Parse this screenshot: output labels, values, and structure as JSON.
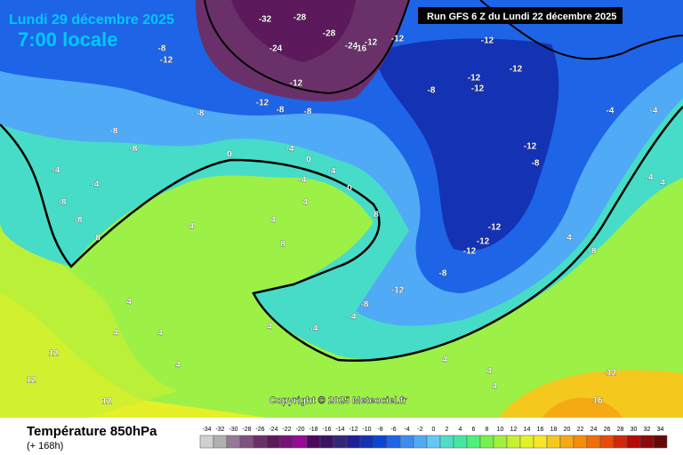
{
  "header": {
    "date": "Lundi 29 décembre 2025",
    "time": "7:00 locale",
    "run": "Run GFS 6 Z du Lundi 22 décembre 2025"
  },
  "copyright": "Copyright © 2025 Meteociel.fr",
  "legend": {
    "title": "Température 850hPa",
    "lead": "(+ 168h)",
    "ticks": [
      -34,
      -32,
      -30,
      -28,
      -26,
      -24,
      -22,
      -20,
      -18,
      -16,
      -14,
      -12,
      -10,
      -8,
      -6,
      -4,
      -2,
      0,
      2,
      4,
      6,
      8,
      10,
      12,
      14,
      16,
      18,
      20,
      22,
      24,
      26,
      28,
      30,
      32,
      34
    ],
    "colors": [
      "#d0d0d0",
      "#b0b0b0",
      "#967896",
      "#805080",
      "#6a306a",
      "#5c1a5c",
      "#781478",
      "#960a96",
      "#4a0a5a",
      "#3c1464",
      "#32287a",
      "#1e1e96",
      "#1432b4",
      "#0a46d2",
      "#1e64e6",
      "#3c8cf0",
      "#50aaf5",
      "#64c8f5",
      "#50dcc8",
      "#46e6a0",
      "#50f078",
      "#78f050",
      "#a0f03c",
      "#c8f032",
      "#e6f028",
      "#f5e628",
      "#f5c81e",
      "#f5aa14",
      "#f58c0a",
      "#f06e0a",
      "#e64b0a",
      "#d2280a",
      "#b40a0a",
      "#8c0a0a",
      "#640a0a"
    ]
  },
  "map": {
    "labels": [
      -32,
      -28,
      -28,
      -24,
      -24,
      -16,
      -12,
      -12,
      -12,
      -12,
      -12,
      -12,
      -8,
      -8,
      -12,
      -12,
      -12,
      -8,
      -8,
      -8,
      -8,
      -8,
      -4,
      0,
      0,
      -4,
      -4,
      -8,
      -8,
      -4,
      0,
      -4,
      4,
      4,
      8,
      4,
      8,
      8,
      4,
      4,
      12,
      12,
      12,
      -12,
      -8,
      -12,
      -12,
      -12,
      -8,
      -12,
      -8,
      -4,
      -4,
      4,
      4,
      4,
      4,
      4,
      4,
      -12,
      16,
      4,
      -8,
      -4,
      -4,
      -4,
      4
    ]
  }
}
